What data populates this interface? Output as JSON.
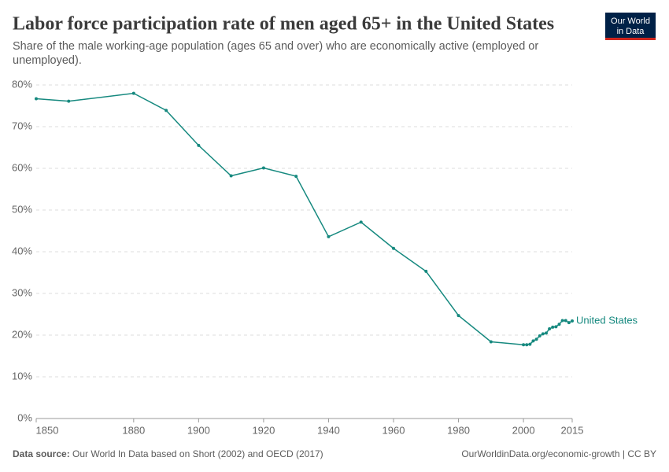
{
  "chart_data": {
    "type": "line",
    "title": "Labor force participation rate of men aged 65+ in the United States",
    "subtitle": "Share of the male working-age population (ages 65 and over) who are economically active (employed or unemployed).",
    "logo": [
      "Our World",
      "in Data"
    ],
    "source_label": "Data source:",
    "source": "Our World In Data based on Short (2002) and OECD (2017)",
    "url": "OurWorldinData.org/economic-growth | CC BY",
    "x": [
      1850,
      1860,
      1880,
      1890,
      1900,
      1910,
      1920,
      1930,
      1940,
      1950,
      1960,
      1970,
      1980,
      1990,
      2000,
      2001,
      2002,
      2003,
      2004,
      2005,
      2006,
      2007,
      2008,
      2009,
      2010,
      2011,
      2012,
      2013,
      2014,
      2015
    ],
    "series": [
      {
        "name": "United States",
        "color": "#16897f",
        "values": [
          76.7,
          76.1,
          78.0,
          73.9,
          65.5,
          58.2,
          60.1,
          58.1,
          43.6,
          47.1,
          40.8,
          35.3,
          24.7,
          18.4,
          17.7,
          17.7,
          17.8,
          18.6,
          19.0,
          19.8,
          20.3,
          20.5,
          21.5,
          21.9,
          22.0,
          22.6,
          23.5,
          23.5,
          23.0,
          23.4
        ]
      }
    ],
    "xlim": [
      1850,
      2015
    ],
    "xticks": [
      1850,
      1880,
      1900,
      1920,
      1940,
      1960,
      1980,
      2000,
      2015
    ],
    "ylim": [
      0,
      80
    ],
    "yticks": [
      {
        "value": 0,
        "label": "0%"
      },
      {
        "value": 10,
        "label": "10%"
      },
      {
        "value": 20,
        "label": "20%"
      },
      {
        "value": 30,
        "label": "30%"
      },
      {
        "value": 40,
        "label": "40%"
      },
      {
        "value": 50,
        "label": "50%"
      },
      {
        "value": 60,
        "label": "60%"
      },
      {
        "value": 70,
        "label": "70%"
      },
      {
        "value": 80,
        "label": "80%"
      }
    ],
    "grid": true
  }
}
